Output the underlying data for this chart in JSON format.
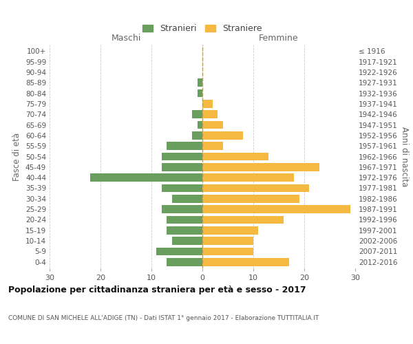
{
  "age_groups": [
    "0-4",
    "5-9",
    "10-14",
    "15-19",
    "20-24",
    "25-29",
    "30-34",
    "35-39",
    "40-44",
    "45-49",
    "50-54",
    "55-59",
    "60-64",
    "65-69",
    "70-74",
    "75-79",
    "80-84",
    "85-89",
    "90-94",
    "95-99",
    "100+"
  ],
  "birth_years": [
    "2012-2016",
    "2007-2011",
    "2002-2006",
    "1997-2001",
    "1992-1996",
    "1987-1991",
    "1982-1986",
    "1977-1981",
    "1972-1976",
    "1967-1971",
    "1962-1966",
    "1957-1961",
    "1952-1956",
    "1947-1951",
    "1942-1946",
    "1937-1941",
    "1932-1936",
    "1927-1931",
    "1922-1926",
    "1917-1921",
    "≤ 1916"
  ],
  "males": [
    7,
    9,
    6,
    7,
    7,
    8,
    6,
    8,
    22,
    8,
    8,
    7,
    2,
    1,
    2,
    0,
    1,
    1,
    0,
    0,
    0
  ],
  "females": [
    17,
    10,
    10,
    11,
    16,
    29,
    19,
    21,
    18,
    23,
    13,
    4,
    8,
    4,
    3,
    2,
    0,
    0,
    0,
    0,
    0
  ],
  "male_color": "#6a9e5e",
  "female_color": "#f5b942",
  "grid_color": "#cccccc",
  "bar_height": 0.75,
  "xlim": 30,
  "title": "Popolazione per cittadinanza straniera per età e sesso - 2017",
  "subtitle": "COMUNE DI SAN MICHELE ALL'ADIGE (TN) - Dati ISTAT 1° gennaio 2017 - Elaborazione TUTTITALIA.IT",
  "xlabel_left": "Maschi",
  "xlabel_right": "Femmine",
  "ylabel_left": "Fasce di età",
  "ylabel_right": "Anni di nascita",
  "legend_male": "Stranieri",
  "legend_female": "Straniere"
}
